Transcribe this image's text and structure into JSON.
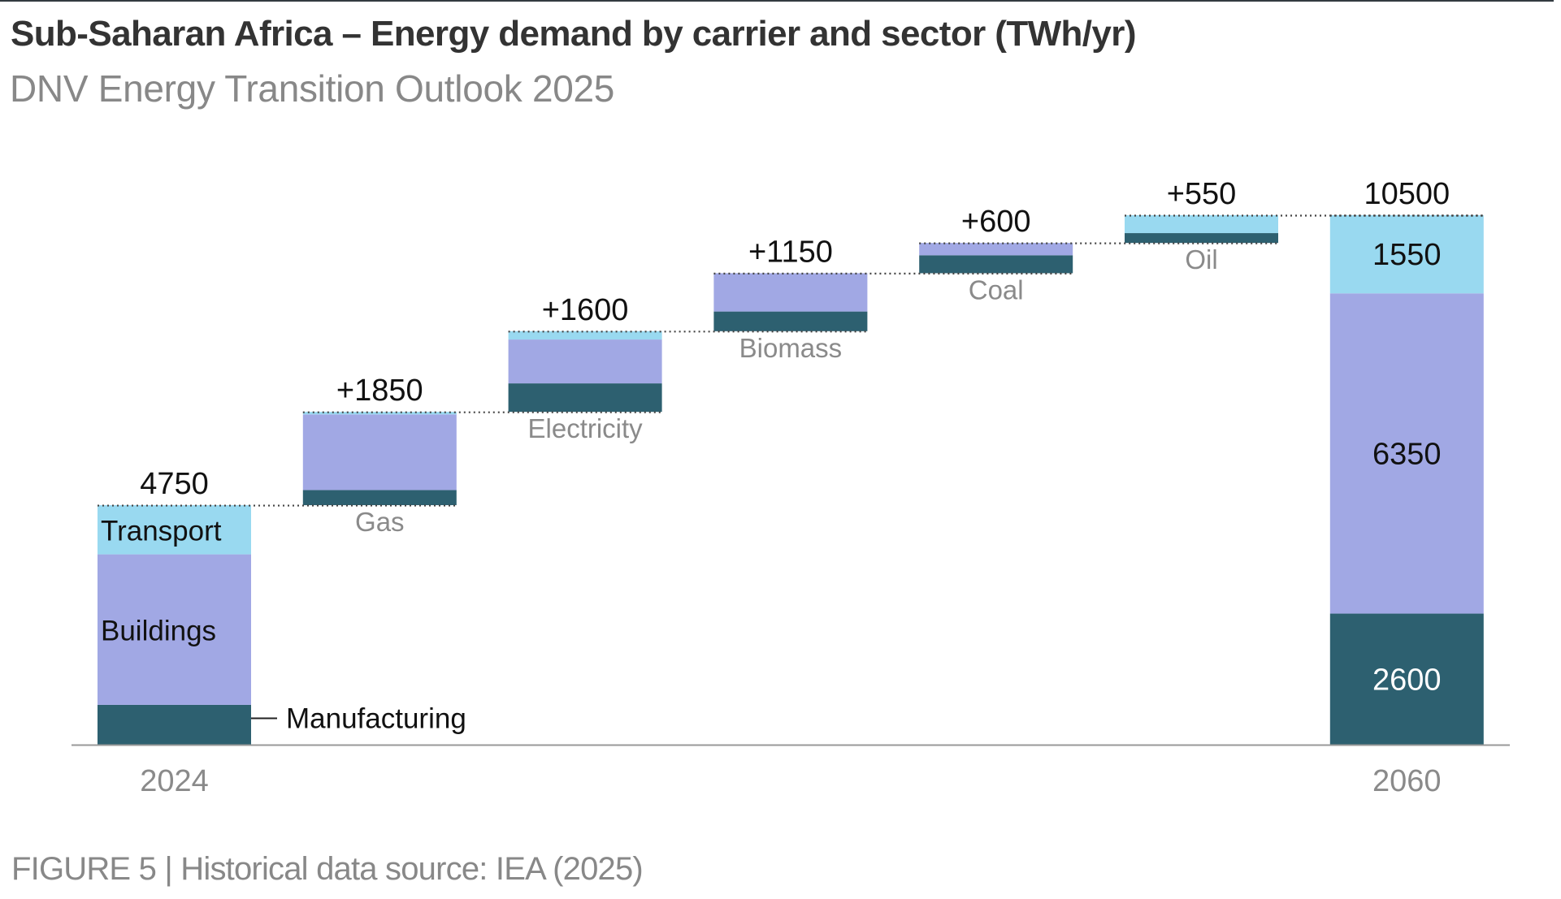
{
  "header": {
    "title": "Sub-Saharan Africa – Energy demand by carrier and sector (TWh/yr)",
    "subtitle": "DNV Energy Transition Outlook 2025"
  },
  "footer": {
    "caption": "FIGURE 5 | Historical data source: IEA (2025)"
  },
  "colors": {
    "manufacturing": "#2d6070",
    "buildings": "#a1a8e4",
    "transport": "#99d9f0",
    "connector": "#444444",
    "axis": "#999999"
  },
  "chart_data": {
    "type": "bar",
    "subtype": "waterfall-stacked",
    "title": "Sub-Saharan Africa – Energy demand by carrier and sector (TWh/yr)",
    "unit": "TWh/yr",
    "ylim": [
      0,
      10500
    ],
    "grid": false,
    "legend": "inline labels on 2024 bar",
    "sectors": [
      "Manufacturing",
      "Buildings",
      "Transport"
    ],
    "steps": [
      {
        "name": "2024",
        "kind": "total",
        "label": "4750",
        "axis_label": "2024",
        "total": 4750,
        "Manufacturing": 790,
        "Buildings": 2985,
        "Transport": 975
      },
      {
        "name": "Gas",
        "kind": "delta",
        "label": "+1850",
        "category_label": "Gas",
        "total": 1850,
        "Manufacturing": 300,
        "Buildings": 1500,
        "Transport": 50
      },
      {
        "name": "Electricity",
        "kind": "delta",
        "label": "+1600",
        "category_label": "Electricity",
        "total": 1600,
        "Manufacturing": 565,
        "Buildings": 870,
        "Transport": 165
      },
      {
        "name": "Biomass",
        "kind": "delta",
        "label": "+1150",
        "category_label": "Biomass",
        "total": 1150,
        "Manufacturing": 390,
        "Buildings": 760,
        "Transport": 0
      },
      {
        "name": "Coal",
        "kind": "delta",
        "label": "+600",
        "category_label": "Coal",
        "total": 600,
        "Manufacturing": 355,
        "Buildings": 245,
        "Transport": 0
      },
      {
        "name": "Oil",
        "kind": "delta",
        "label": "+550",
        "category_label": "Oil",
        "total": 550,
        "Manufacturing": 195,
        "Buildings": 0,
        "Transport": 355
      },
      {
        "name": "2060",
        "kind": "total",
        "label": "10500",
        "axis_label": "2060",
        "total": 10500,
        "Manufacturing": 2600,
        "Buildings": 6350,
        "Transport": 1550,
        "segment_labels": {
          "Manufacturing": "2600",
          "Buildings": "6350",
          "Transport": "1550"
        }
      }
    ],
    "sector_labels": {
      "Transport": "Transport",
      "Buildings": "Buildings",
      "Manufacturing": "Manufacturing"
    }
  }
}
